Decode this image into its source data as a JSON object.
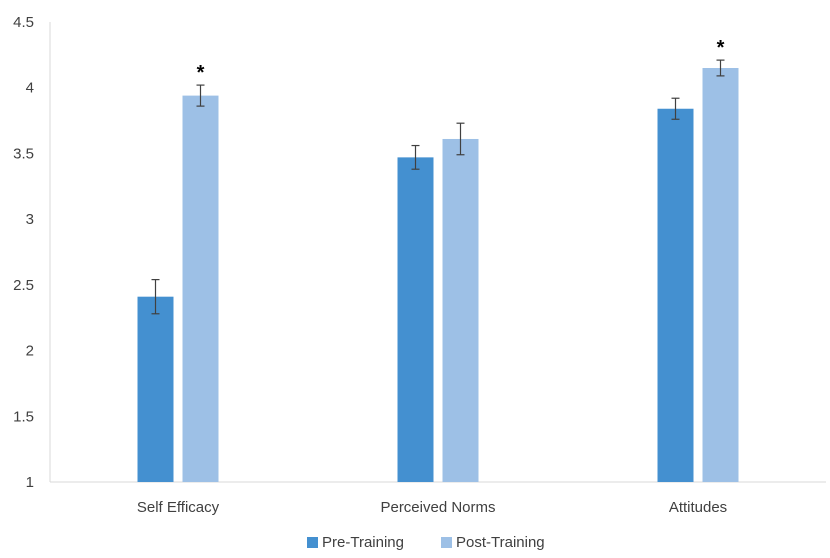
{
  "chart_data": {
    "type": "bar",
    "title": "",
    "xlabel": "",
    "ylabel": "",
    "ylim": [
      1,
      4.5
    ],
    "y_ticks": [
      "1",
      "1.5",
      "2",
      "2.5",
      "3",
      "3.5",
      "4",
      "4.5"
    ],
    "categories": [
      "Self Efficacy",
      "Perceived Norms",
      "Attitudes"
    ],
    "series": [
      {
        "name": "Pre-Training",
        "color": "#4490d0",
        "values": [
          2.41,
          3.47,
          3.84
        ],
        "error": [
          0.13,
          0.09,
          0.08
        ]
      },
      {
        "name": "Post-Training",
        "color": "#9dc0e6",
        "values": [
          3.94,
          3.61,
          4.15
        ],
        "error": [
          0.08,
          0.12,
          0.06
        ]
      }
    ],
    "annotations": [
      {
        "category": 0,
        "series": 1,
        "text": "*"
      },
      {
        "category": 2,
        "series": 1,
        "text": "*"
      }
    ],
    "grid": false,
    "legend_position": "bottom"
  }
}
